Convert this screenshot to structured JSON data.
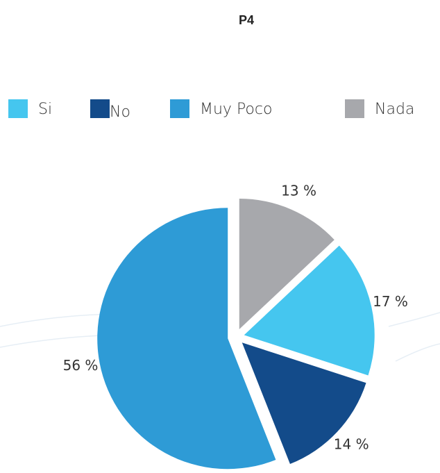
{
  "chart_data": {
    "type": "pie",
    "title": "P4",
    "categories": [
      "Si",
      "No",
      "Muy Poco",
      "Nada"
    ],
    "values": [
      17,
      14,
      56,
      13
    ],
    "value_labels": [
      "17 %",
      "14 %",
      "56 %",
      "13 %"
    ],
    "colors": [
      "#45c6ef",
      "#134b8a",
      "#2e9bd6",
      "#a7a8ac"
    ],
    "start_angle": 46.8,
    "legend": "top"
  }
}
